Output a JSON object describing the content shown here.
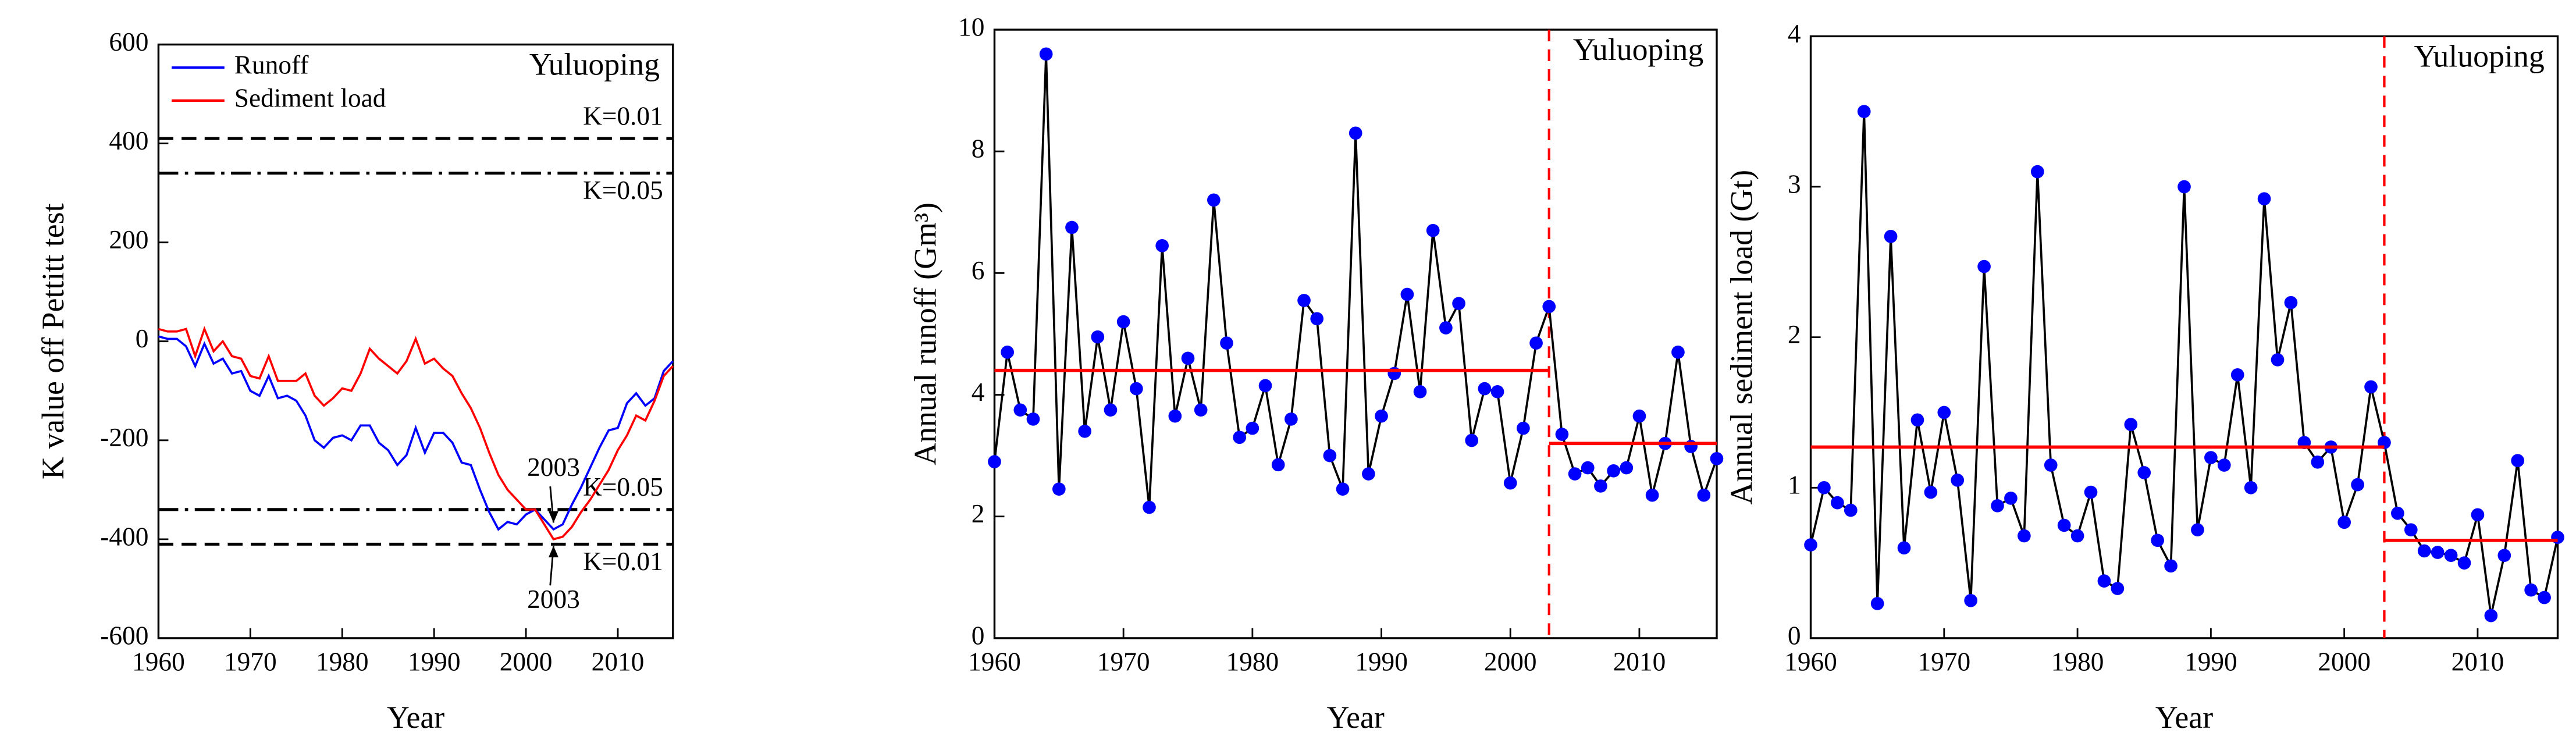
{
  "chart_data": [
    {
      "type": "line",
      "title": "Yuluoping",
      "xlabel": "Year",
      "ylabel": "K value off Pettitt test",
      "x": [
        1960,
        1961,
        1962,
        1963,
        1964,
        1965,
        1966,
        1967,
        1968,
        1969,
        1970,
        1971,
        1972,
        1973,
        1974,
        1975,
        1976,
        1977,
        1978,
        1979,
        1980,
        1981,
        1982,
        1983,
        1984,
        1985,
        1986,
        1987,
        1988,
        1989,
        1990,
        1991,
        1992,
        1993,
        1994,
        1995,
        1996,
        1997,
        1998,
        1999,
        2000,
        2001,
        2002,
        2003,
        2004,
        2005,
        2006,
        2007,
        2008,
        2009,
        2010,
        2011,
        2012,
        2013,
        2014,
        2015,
        2016
      ],
      "series": [
        {
          "name": "Runoff",
          "color": "#0000ff",
          "values": [
            10,
            5,
            5,
            -10,
            -50,
            -5,
            -45,
            -35,
            -65,
            -60,
            -100,
            -110,
            -70,
            -115,
            -110,
            -120,
            -150,
            -200,
            -215,
            -195,
            -190,
            -200,
            -170,
            -170,
            -205,
            -220,
            -250,
            -230,
            -175,
            -225,
            -185,
            -185,
            -205,
            -245,
            -250,
            -300,
            -345,
            -380,
            -365,
            -370,
            -350,
            -340,
            -360,
            -380,
            -370,
            -330,
            -295,
            -255,
            -215,
            -180,
            -175,
            -125,
            -105,
            -130,
            -115,
            -60,
            -40
          ]
        },
        {
          "name": "Sediment load",
          "color": "#ff0000",
          "values": [
            25,
            20,
            20,
            25,
            -30,
            25,
            -20,
            0,
            -30,
            -35,
            -70,
            -75,
            -30,
            -80,
            -80,
            -80,
            -65,
            -110,
            -130,
            -115,
            -95,
            -100,
            -65,
            -15,
            -35,
            -50,
            -65,
            -40,
            5,
            -45,
            -35,
            -55,
            -70,
            -105,
            -135,
            -175,
            -225,
            -270,
            -300,
            -320,
            -340,
            -340,
            -370,
            -400,
            -395,
            -375,
            -345,
            -320,
            -290,
            -260,
            -220,
            -190,
            -150,
            -160,
            -120,
            -70,
            -50
          ]
        }
      ],
      "threshold_lines": [
        {
          "value": 410,
          "label": "K=0.01",
          "style": "dashed"
        },
        {
          "value": 340,
          "label": "K=0.05",
          "style": "dashdot"
        },
        {
          "value": -340,
          "label": "K=0.05",
          "style": "dashdot"
        },
        {
          "value": -410,
          "label": "K=0.01",
          "style": "dashed"
        }
      ],
      "annotations": [
        "2003",
        "2003"
      ],
      "xlim": [
        1960,
        2016
      ],
      "xticks": [
        1960,
        1970,
        1980,
        1990,
        2000,
        2010
      ],
      "ylim": [
        -600,
        600
      ],
      "yticks": [
        -600,
        -400,
        -200,
        0,
        200,
        400,
        600
      ],
      "legend": "upper left"
    },
    {
      "type": "line",
      "title": "Yuluoping",
      "xlabel": "Year",
      "ylabel": "Annual runoff (Gm³)",
      "x": [
        1960,
        1961,
        1962,
        1963,
        1964,
        1965,
        1966,
        1967,
        1968,
        1969,
        1970,
        1971,
        1972,
        1973,
        1974,
        1975,
        1976,
        1977,
        1978,
        1979,
        1980,
        1981,
        1982,
        1983,
        1984,
        1985,
        1986,
        1987,
        1988,
        1989,
        1990,
        1991,
        1992,
        1993,
        1994,
        1995,
        1996,
        1997,
        1998,
        1999,
        2000,
        2001,
        2002,
        2003,
        2004,
        2005,
        2006,
        2007,
        2008,
        2009,
        2010,
        2011,
        2012,
        2013,
        2014,
        2015,
        2016
      ],
      "series": [
        {
          "color": "#000000",
          "marker_color": "#0000ff",
          "values": [
            2.9,
            4.7,
            3.75,
            3.6,
            9.6,
            2.45,
            6.75,
            3.4,
            4.95,
            3.75,
            5.2,
            4.1,
            2.15,
            6.45,
            3.65,
            4.6,
            3.75,
            7.2,
            4.85,
            3.3,
            3.45,
            4.15,
            2.85,
            3.6,
            5.55,
            5.25,
            3.0,
            2.45,
            8.3,
            2.7,
            3.65,
            4.35,
            5.65,
            4.05,
            6.7,
            5.1,
            5.5,
            3.25,
            4.1,
            4.05,
            2.55,
            3.45,
            4.85,
            5.45,
            3.35,
            2.7,
            2.8,
            2.5,
            2.75,
            2.8,
            3.65,
            2.35,
            3.2,
            4.7,
            3.15,
            2.35,
            2.95
          ]
        }
      ],
      "change_point": 2003,
      "change_color": "#ff0000",
      "mean_lines": [
        {
          "x": [
            1960,
            2003
          ],
          "value": 4.4
        },
        {
          "x": [
            2003,
            2016
          ],
          "value": 3.2
        }
      ],
      "mean_color": "#ff0000",
      "xlim": [
        1960,
        2016
      ],
      "xticks": [
        1960,
        1970,
        1980,
        1990,
        2000,
        2010
      ],
      "ylim": [
        0,
        10
      ],
      "yticks": [
        0,
        2,
        4,
        6,
        8,
        10
      ]
    },
    {
      "type": "line",
      "title": "Yuluoping",
      "xlabel": "Year",
      "ylabel": "Annual sediment load (Gt)",
      "x": [
        1960,
        1961,
        1962,
        1963,
        1964,
        1965,
        1966,
        1967,
        1968,
        1969,
        1970,
        1971,
        1972,
        1973,
        1974,
        1975,
        1976,
        1977,
        1978,
        1979,
        1980,
        1981,
        1982,
        1983,
        1984,
        1985,
        1986,
        1987,
        1988,
        1989,
        1990,
        1991,
        1992,
        1993,
        1994,
        1995,
        1996,
        1997,
        1998,
        1999,
        2000,
        2001,
        2002,
        2003,
        2004,
        2005,
        2006,
        2007,
        2008,
        2009,
        2010,
        2011,
        2012,
        2013,
        2014,
        2015,
        2016
      ],
      "series": [
        {
          "color": "#000000",
          "marker_color": "#0000ff",
          "values": [
            0.62,
            1.0,
            0.9,
            0.85,
            3.5,
            0.23,
            2.67,
            0.6,
            1.45,
            0.97,
            1.5,
            1.05,
            0.25,
            2.47,
            0.88,
            0.93,
            0.68,
            3.1,
            1.15,
            0.75,
            0.68,
            0.97,
            0.38,
            0.33,
            1.42,
            1.1,
            0.65,
            0.48,
            3.0,
            0.72,
            1.2,
            1.15,
            1.75,
            1.0,
            2.92,
            1.85,
            2.23,
            1.3,
            1.17,
            1.27,
            0.77,
            1.02,
            1.67,
            1.3,
            0.83,
            0.72,
            0.58,
            0.57,
            0.55,
            0.5,
            0.82,
            0.15,
            0.55,
            1.18,
            0.32,
            0.27,
            0.67
          ]
        }
      ],
      "change_point": 2003,
      "change_color": "#ff0000",
      "mean_lines": [
        {
          "x": [
            1960,
            2003
          ],
          "value": 1.27
        },
        {
          "x": [
            2003,
            2016
          ],
          "value": 0.65
        }
      ],
      "mean_color": "#ff0000",
      "xlim": [
        1960,
        2016
      ],
      "xticks": [
        1960,
        1970,
        1980,
        1990,
        2000,
        2010
      ],
      "ylim": [
        0,
        4
      ],
      "yticks": [
        0,
        1,
        2,
        3,
        4
      ]
    }
  ]
}
